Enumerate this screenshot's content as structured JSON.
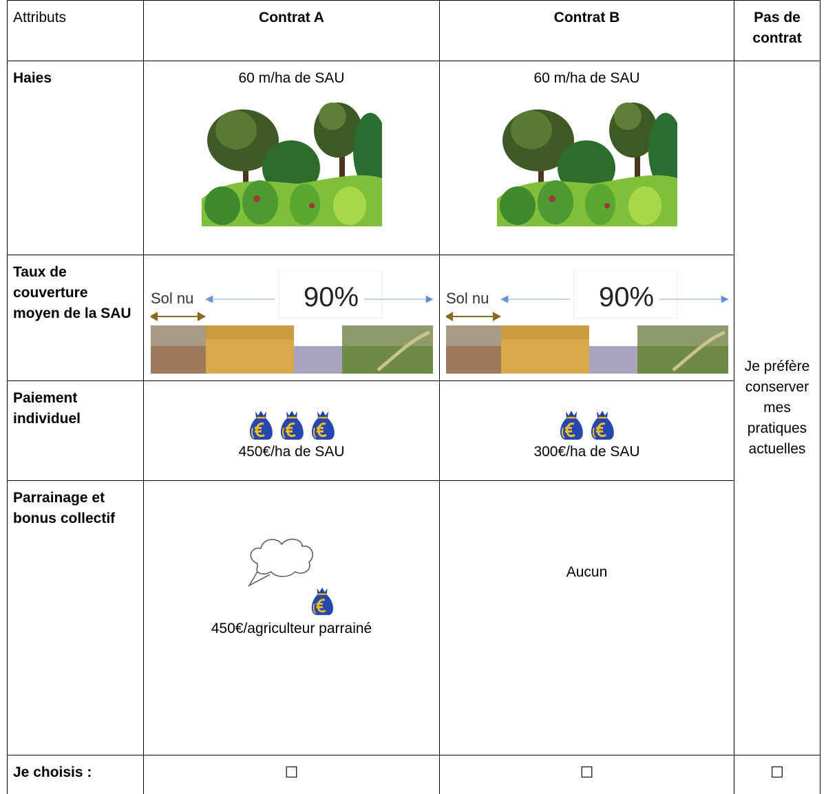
{
  "table": {
    "header": [
      "Attributs",
      "Contrat A",
      "Contrat B",
      "Pas de contrat"
    ],
    "rows": [
      {
        "label": "Haies",
        "contrat_a": "60 m/ha de SAU",
        "contrat_b": "60 m/ha de SAU"
      },
      {
        "label": "Taux de couverture moyen de la SAU",
        "contrat_a": {
          "start": "Sol nu",
          "value": "90%"
        },
        "contrat_b": {
          "start": "Sol nu",
          "value": "90%"
        }
      },
      {
        "label": "Paiement individuel",
        "contrat_a": "450€/ha de SAU",
        "contrat_b": "300€/ha de SAU"
      },
      {
        "label": "Parrainage et bonus collectif",
        "contrat_a": "450€/agriculteur parrainé",
        "contrat_b": "Aucun"
      }
    ],
    "no_contract": "Je préfère conserver mes pratiques actuelles",
    "choose": {
      "label": "Je choisis :",
      "boxes": [
        "☐",
        "☐",
        "☐"
      ]
    }
  }
}
